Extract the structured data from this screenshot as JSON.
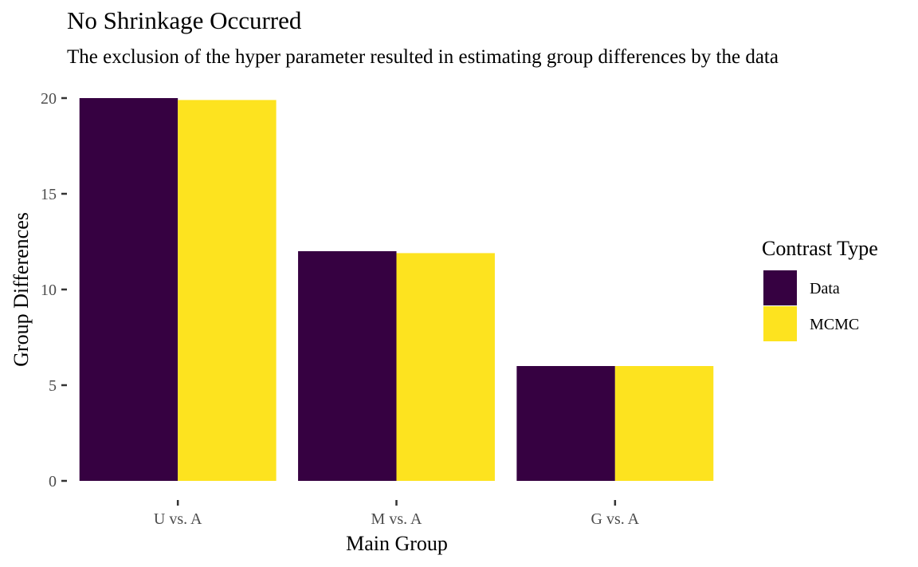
{
  "chart_data": {
    "type": "bar",
    "title": "No Shrinkage Occurred",
    "subtitle": "The exclusion of the hyper parameter resulted in estimating group differences by the data",
    "xlabel": "Main Group",
    "ylabel": "Group Differences",
    "categories": [
      "U vs. A",
      "M vs. A",
      "G vs. A"
    ],
    "series": [
      {
        "name": "Data",
        "color": "#360141",
        "values": [
          20.0,
          12.0,
          6.0
        ]
      },
      {
        "name": "MCMC",
        "color": "#FDE31F",
        "values": [
          19.9,
          11.9,
          6.0
        ]
      }
    ],
    "ylim": [
      0,
      20
    ],
    "yticks": [
      0,
      5,
      10,
      15,
      20
    ],
    "grid": false,
    "legend": {
      "title": "Contrast Type",
      "position": "right"
    }
  }
}
